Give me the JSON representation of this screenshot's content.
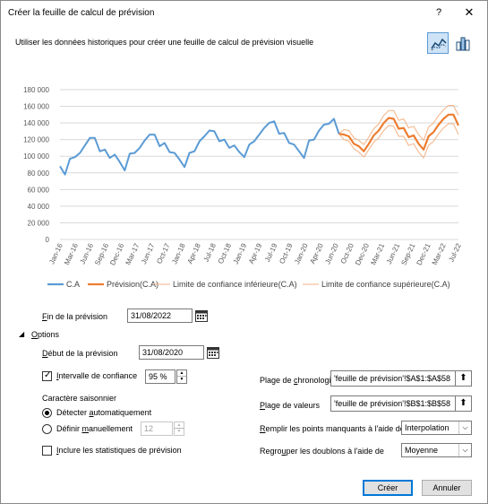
{
  "window": {
    "title": "Créer la feuille de calcul de prévision",
    "help_label": "?",
    "close_label": "✕"
  },
  "description": "Utiliser les données historiques pour créer une feuille de calcul de prévision visuelle",
  "view_buttons": {
    "line_icon": "line-chart-icon",
    "column_icon": "column-chart-icon",
    "selected": "line"
  },
  "chart_data": {
    "type": "line",
    "ylim": [
      0,
      180000
    ],
    "yticks": [
      "180 000",
      "160 000",
      "140 000",
      "120 000",
      "100 000",
      "80 000",
      "60 000",
      "40 000",
      "20 000",
      "0"
    ],
    "ytick_values": [
      180000,
      160000,
      140000,
      120000,
      100000,
      80000,
      60000,
      40000,
      20000,
      0
    ],
    "xticks": [
      "Jan-16",
      "Mar-16",
      "Jun-16",
      "Sep-16",
      "Dec-16",
      "Mar-17",
      "Jun-17",
      "Oct-17",
      "Jan-18",
      "Apr-18",
      "Jul-18",
      "Oct-18",
      "Jan-19",
      "Apr-19",
      "Jul-19",
      "Oct-19",
      "Jan-20",
      "Apr-20",
      "Jun-20",
      "Oct-20",
      "Dec-20",
      "Mar-21",
      "Jun-21",
      "Sep-21",
      "Dec-21",
      "Mar-22",
      "Jul-22"
    ],
    "grid": true,
    "legend_position": "bottom",
    "series": [
      {
        "name": "C.A",
        "color": "#5b9bd5",
        "start": 0,
        "values": [
          88000,
          78000,
          97000,
          99000,
          104000,
          113000,
          122000,
          122000,
          106000,
          108000,
          98000,
          102000,
          93000,
          83000,
          103000,
          104000,
          110000,
          119000,
          126000,
          126000,
          112000,
          116000,
          105000,
          104000,
          96000,
          87000,
          104000,
          106000,
          118000,
          124000,
          131000,
          130000,
          118000,
          120000,
          110000,
          113000,
          105000,
          99000,
          114000,
          118000,
          126000,
          134000,
          140000,
          142000,
          127000,
          128000,
          116000,
          114000,
          106000,
          98000,
          119000,
          120000,
          131000,
          138000,
          139000,
          145000,
          127000
        ]
      },
      {
        "name": "Prévision(C.A)",
        "color": "#ed7d31",
        "start": 56,
        "values": [
          127000,
          126000,
          124000,
          115000,
          112000,
          106000,
          115000,
          125000,
          131000,
          140000,
          146000,
          145000,
          133000,
          134000,
          123000,
          125000,
          115000,
          108000,
          124000,
          129000,
          138000,
          145000,
          150000,
          150000,
          137000
        ]
      },
      {
        "name": "Limite de confiance inférieure(C.A)",
        "color": "#f4b183",
        "start": 56,
        "values": [
          127000,
          120000,
          118000,
          109000,
          105000,
          99000,
          108000,
          117000,
          122000,
          131000,
          137000,
          136000,
          124000,
          124000,
          113000,
          115000,
          105000,
          98000,
          113000,
          118000,
          127000,
          134000,
          139000,
          139000,
          126000
        ]
      },
      {
        "name": "Limite de confiance supérieure(C.A)",
        "color": "#f4b183",
        "start": 56,
        "values": [
          127000,
          132000,
          131000,
          122000,
          119000,
          114000,
          123000,
          133000,
          139000,
          149000,
          155000,
          155000,
          143000,
          145000,
          134000,
          136000,
          126000,
          119000,
          135000,
          140000,
          149000,
          156000,
          161000,
          161000,
          149000
        ]
      }
    ]
  },
  "form": {
    "end_label": "Fin de la prévision",
    "end_value": "31/08/2022",
    "options_label": "Options",
    "start_label": "Début de la prévision",
    "start_value": "31/08/2020",
    "confidence_label": "Intervalle de confiance",
    "confidence_checked": true,
    "confidence_value": "95 %",
    "seasonal_label": "Caractère saisonnier",
    "auto_label": "Détecter automatiquement",
    "manual_label": "Définir manuellement",
    "manual_value": "12",
    "seasonal_selected": "auto",
    "stats_label": "Inclure les statistiques de prévision",
    "stats_checked": false,
    "timeline_label": "Plage de chronologie",
    "timeline_value": "'feuille de prévision'!$A$1:$A$58",
    "values_label": "Plage de valeurs",
    "values_value": "'feuille de prévision'!$B$1:$B$58",
    "fill_label": "Remplir les points manquants à l'aide de",
    "fill_value": "Interpolation",
    "dup_label": "Regrouper les doublons à l'aide de",
    "dup_value": "Moyenne"
  },
  "buttons": {
    "create": "Créer",
    "cancel": "Annuler"
  }
}
